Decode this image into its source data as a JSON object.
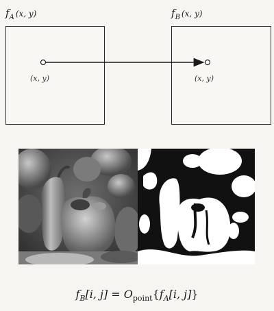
{
  "image_a": {
    "label_f": "f",
    "label_sub": "A",
    "label_args": "(x, y)",
    "point_label": "(x, y)"
  },
  "image_b": {
    "label_f": "f",
    "label_sub": "B",
    "label_args": "(x, y)",
    "point_label": "(x, y)"
  },
  "photos": {
    "left": "grayscale-peppers-photo",
    "right": "thresholded-peppers-photo"
  },
  "formula": {
    "lhs_f": "f",
    "lhs_sub": "B",
    "lhs_idx": "[i, j] = ",
    "op": "O",
    "op_sub": "point",
    "open": "{",
    "rhs_f": "f",
    "rhs_sub": "A",
    "rhs_idx": "[i, j]",
    "close": "}"
  }
}
